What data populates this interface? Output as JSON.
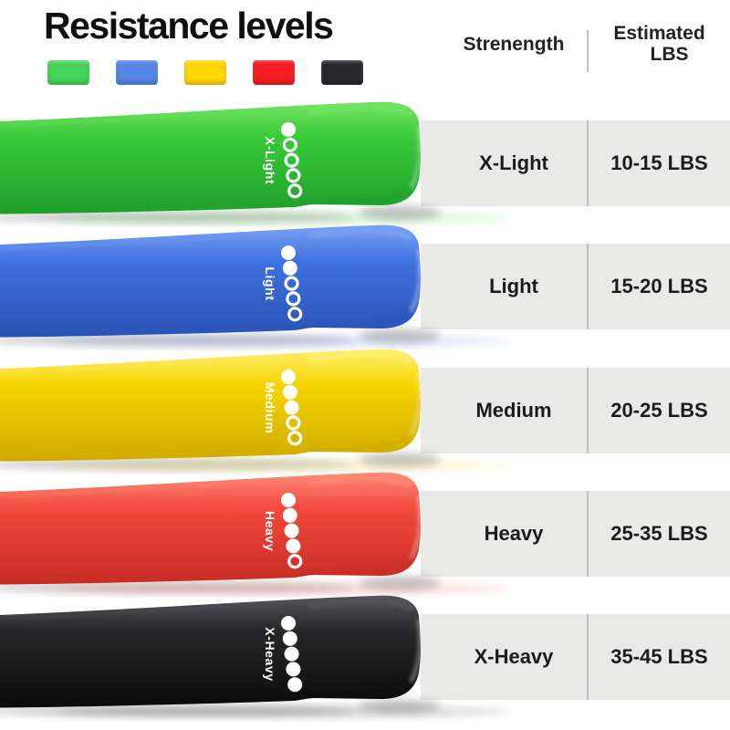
{
  "title": "Resistance levels",
  "colors": {
    "background": "#ffffff",
    "row_bg": "#e9e9e7",
    "divider": "#bdbdbd",
    "text": "#1b1b1d"
  },
  "swatches": [
    {
      "name": "green",
      "color": "#46d35a"
    },
    {
      "name": "blue",
      "color": "#5585e7"
    },
    {
      "name": "yellow",
      "color": "#ffd602"
    },
    {
      "name": "red",
      "color": "#f41d23"
    },
    {
      "name": "black",
      "color": "#28282c"
    }
  ],
  "table": {
    "col1_header": "Strenength",
    "col2_header": [
      "Estimated",
      "LBS"
    ],
    "rows": [
      {
        "strength": "X-Light",
        "lbs": "10-15 LBS"
      },
      {
        "strength": "Light",
        "lbs": "15-20 LBS"
      },
      {
        "strength": "Medium",
        "lbs": "20-25 LBS"
      },
      {
        "strength": "Heavy",
        "lbs": "25-35 LBS"
      },
      {
        "strength": "X-Heavy",
        "lbs": "35-45 LBS"
      }
    ]
  },
  "bands": [
    {
      "label": "X-Light",
      "dots_filled": 1,
      "dots_total": 5,
      "color_light": "#72e463",
      "color_base": "#38c93a",
      "color_dark": "#1f9e2a"
    },
    {
      "label": "Light",
      "dots_filled": 2,
      "dots_total": 5,
      "color_light": "#7aa2f2",
      "color_base": "#3e72e0",
      "color_dark": "#2a52b4"
    },
    {
      "label": "Medium",
      "dots_filled": 3,
      "dots_total": 5,
      "color_light": "#ffee6e",
      "color_base": "#f6d400",
      "color_dark": "#cfa900"
    },
    {
      "label": "Heavy",
      "dots_filled": 4,
      "dots_total": 5,
      "color_light": "#ff8a76",
      "color_base": "#f1493c",
      "color_dark": "#c62b22"
    },
    {
      "label": "X-Heavy",
      "dots_filled": 5,
      "dots_total": 5,
      "color_light": "#55555a",
      "color_base": "#262628",
      "color_dark": "#0a0a0a"
    }
  ]
}
